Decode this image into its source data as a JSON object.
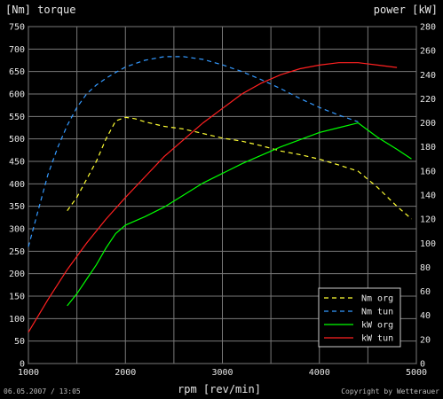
{
  "chart_data": {
    "type": "line",
    "left_axis_title": "[Nm] torque",
    "right_axis_title": "power [kW]",
    "xlabel": "rpm [rev/min]",
    "xlim": [
      1000,
      5000
    ],
    "ylim_left": [
      0,
      750
    ],
    "ylim_right": [
      0,
      280
    ],
    "x_ticks": [
      "1000",
      "2000",
      "3000",
      "4000",
      "5000"
    ],
    "y_ticks_left": [
      "0",
      "50",
      "100",
      "150",
      "200",
      "250",
      "300",
      "350",
      "400",
      "450",
      "500",
      "550",
      "600",
      "650",
      "700",
      "750"
    ],
    "y_ticks_right": [
      "0",
      "20",
      "40",
      "60",
      "80",
      "100",
      "120",
      "140",
      "160",
      "180",
      "200",
      "220",
      "240",
      "260",
      "280"
    ],
    "grid": true,
    "legend_position": "bottom-right",
    "series": [
      {
        "name": "Nm org",
        "axis": "left",
        "color": "#ffff33",
        "dash": true,
        "points": [
          [
            1400,
            340
          ],
          [
            1500,
            370
          ],
          [
            1600,
            410
          ],
          [
            1700,
            450
          ],
          [
            1800,
            500
          ],
          [
            1900,
            540
          ],
          [
            2000,
            548
          ],
          [
            2100,
            545
          ],
          [
            2200,
            538
          ],
          [
            2400,
            528
          ],
          [
            2600,
            522
          ],
          [
            2800,
            512
          ],
          [
            3000,
            502
          ],
          [
            3200,
            495
          ],
          [
            3400,
            485
          ],
          [
            3600,
            473
          ],
          [
            3800,
            465
          ],
          [
            4000,
            455
          ],
          [
            4200,
            442
          ],
          [
            4400,
            428
          ],
          [
            4600,
            392
          ],
          [
            4800,
            350
          ],
          [
            4950,
            322
          ]
        ]
      },
      {
        "name": "Nm tun",
        "axis": "left",
        "color": "#3399ff",
        "dash": true,
        "points": [
          [
            1000,
            260
          ],
          [
            1100,
            340
          ],
          [
            1200,
            420
          ],
          [
            1300,
            480
          ],
          [
            1400,
            530
          ],
          [
            1500,
            570
          ],
          [
            1600,
            600
          ],
          [
            1700,
            620
          ],
          [
            1800,
            635
          ],
          [
            1900,
            648
          ],
          [
            2000,
            660
          ],
          [
            2200,
            675
          ],
          [
            2400,
            683
          ],
          [
            2600,
            683
          ],
          [
            2800,
            677
          ],
          [
            3000,
            665
          ],
          [
            3200,
            650
          ],
          [
            3400,
            632
          ],
          [
            3600,
            612
          ],
          [
            3800,
            590
          ],
          [
            4000,
            570
          ],
          [
            4200,
            553
          ],
          [
            4400,
            538
          ]
        ]
      },
      {
        "name": "kW org",
        "axis": "right",
        "color": "#00ff00",
        "dash": false,
        "points": [
          [
            1400,
            48
          ],
          [
            1500,
            58
          ],
          [
            1600,
            70
          ],
          [
            1700,
            82
          ],
          [
            1800,
            96
          ],
          [
            1900,
            108
          ],
          [
            2000,
            115
          ],
          [
            2200,
            122
          ],
          [
            2400,
            130
          ],
          [
            2600,
            140
          ],
          [
            2800,
            150
          ],
          [
            3000,
            158
          ],
          [
            3200,
            166
          ],
          [
            3400,
            173
          ],
          [
            3600,
            180
          ],
          [
            3800,
            186
          ],
          [
            4000,
            192
          ],
          [
            4200,
            196
          ],
          [
            4400,
            200
          ],
          [
            4600,
            188
          ],
          [
            4800,
            178
          ],
          [
            4950,
            170
          ]
        ]
      },
      {
        "name": "kW tun",
        "axis": "right",
        "color": "#ff2020",
        "dash": false,
        "points": [
          [
            1000,
            26
          ],
          [
            1200,
            53
          ],
          [
            1400,
            78
          ],
          [
            1600,
            100
          ],
          [
            1800,
            120
          ],
          [
            2000,
            138
          ],
          [
            2200,
            155
          ],
          [
            2400,
            172
          ],
          [
            2600,
            186
          ],
          [
            2800,
            200
          ],
          [
            3000,
            212
          ],
          [
            3200,
            224
          ],
          [
            3400,
            233
          ],
          [
            3600,
            240
          ],
          [
            3800,
            245
          ],
          [
            4000,
            248
          ],
          [
            4200,
            250
          ],
          [
            4400,
            250
          ],
          [
            4600,
            248
          ],
          [
            4800,
            246
          ]
        ]
      }
    ],
    "footer_left": "06.05.2007 / 13:05",
    "footer_right": "Copyright by Wetterauer"
  }
}
